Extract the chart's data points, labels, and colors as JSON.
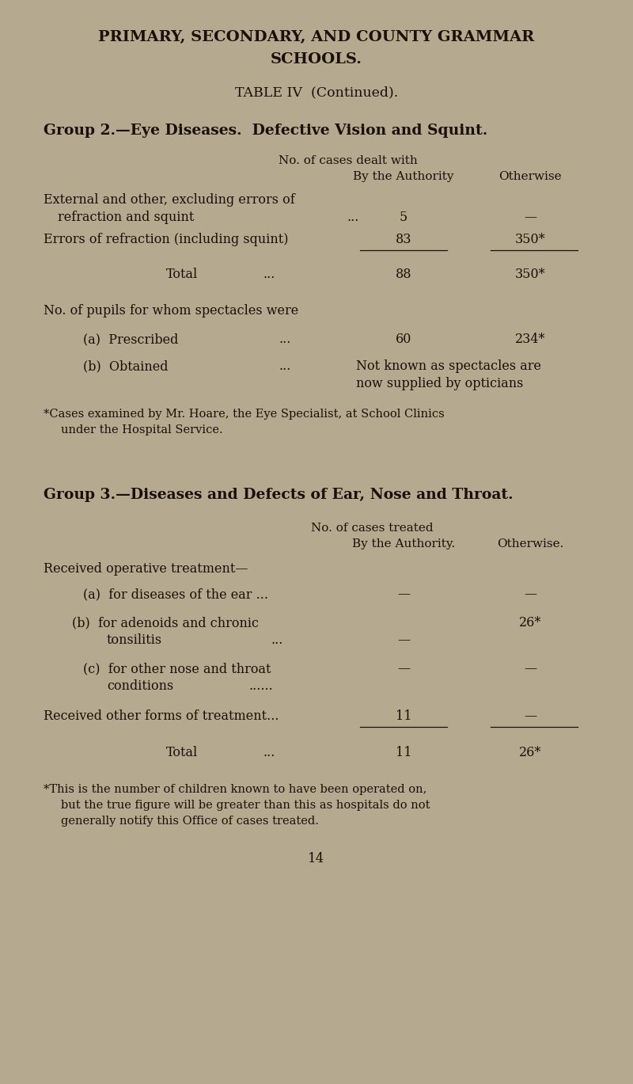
{
  "bg_color": "#b5aa8f",
  "text_color": "#1a1008",
  "fig_w": 8.0,
  "fig_h": 13.69,
  "dpi": 100,
  "main_title_line1": "PRIMARY, SECONDARY, AND COUNTY GRAMMAR",
  "main_title_line2": "SCHOOLS.",
  "subtitle": "TABLE IV  (Continued).",
  "group2_heading": "Group 2.—Eye Diseases.  Defective Vision and Squint.",
  "group2_col_header1": "No. of cases dealt with",
  "group2_col_header2a": "By the Authority",
  "group2_col_header2b": "Otherwise",
  "group3_heading": "Group 3.—Diseases and Defects of Ear, Nose and Throat.",
  "group3_col_header1": "No. of cases treated",
  "group3_col_header2a": "By the Authority.",
  "group3_col_header2b": "Otherwise.",
  "footnote1_line1": "*Cases examined by Mr. Hoare, the Eye Specialist, at School Clinics",
  "footnote1_line2": "under the Hospital Service.",
  "footnote2_line1": "*This is the number of children known to have been operated on,",
  "footnote2_line2": "but the true figure will be greater than this as hospitals do not",
  "footnote2_line3": "generally notify this Office of cases treated.",
  "page_number": "14"
}
